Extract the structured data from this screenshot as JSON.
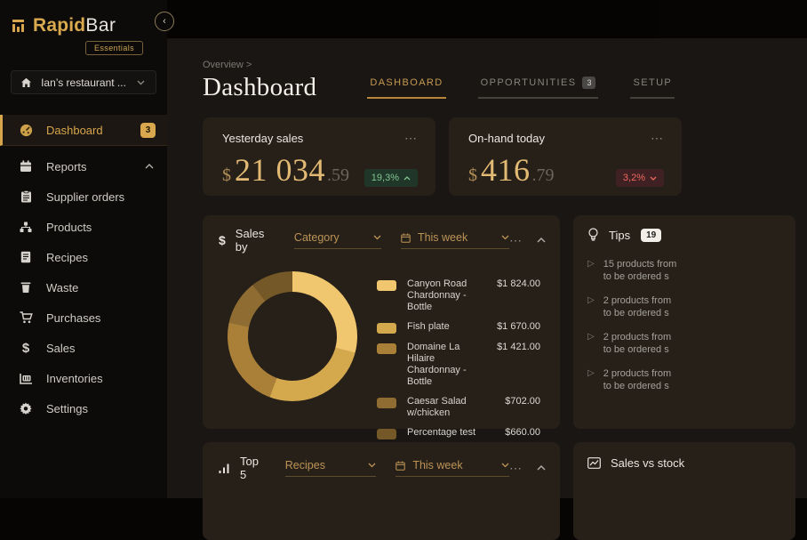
{
  "logo": {
    "brand_primary": "Rapid",
    "brand_secondary": "Bar",
    "badge": "Essentials"
  },
  "topbar": {
    "collapse_icon": "‹"
  },
  "sidebar": {
    "restaurant_selector": {
      "label": "Ian’s restaurant ..."
    },
    "items": [
      {
        "label": "Dashboard",
        "badge": "3"
      },
      {
        "label": "Reports"
      },
      {
        "label": "Supplier orders"
      },
      {
        "label": "Products"
      },
      {
        "label": "Recipes"
      },
      {
        "label": "Waste"
      },
      {
        "label": "Purchases"
      },
      {
        "label": "Sales"
      },
      {
        "label": "Inventories"
      },
      {
        "label": "Settings"
      }
    ]
  },
  "header": {
    "breadcrumb": "Overview >",
    "title": "Dashboard",
    "tabs": [
      {
        "label": "DASHBOARD"
      },
      {
        "label": "OPPORTUNITIES",
        "badge": "3"
      },
      {
        "label": "SETUP"
      }
    ]
  },
  "kpis": [
    {
      "title": "Yesterday sales",
      "currency": "$",
      "value": "21 034",
      "decimal": ".59",
      "change": "19,3%",
      "menu": "⋯"
    },
    {
      "title": "On-hand today",
      "currency": "$",
      "value": "416",
      "decimal": ".79",
      "change": "3,2%",
      "menu": "⋯"
    }
  ],
  "sales_by": {
    "icon": "$",
    "title": "Sales by",
    "dimension": "Category",
    "period": "This week",
    "menu": "⋯"
  },
  "chart_data": {
    "type": "pie",
    "donut": true,
    "title": "Sales by Category - This week",
    "labels": [
      "Canyon Road Chardonnay - Bottle",
      "Fish plate",
      "Domaine La Hilaire Chardonnay - Bottle",
      "Caesar Salad w/chicken",
      "Percentage test"
    ],
    "values": [
      1824.0,
      1670.0,
      1421.0,
      702.0,
      660.0
    ],
    "display_values": [
      "$1 824.00",
      "$1 670.00",
      "$1 421.00",
      "$702.00",
      "$660.00"
    ],
    "colors": [
      "#f0c76e",
      "#d4a94e",
      "#aa8039",
      "#8f6c31",
      "#745827"
    ],
    "legend_position": "right"
  },
  "tips": {
    "title": "Tips",
    "badge": "19",
    "items": [
      {
        "line1": "15 products from",
        "line2": "to be ordered s"
      },
      {
        "line1": "2 products from",
        "line2": "to be ordered s"
      },
      {
        "line1": "2 products from",
        "line2": "to be ordered s"
      },
      {
        "line1": "2 products from",
        "line2": "to be ordered s"
      }
    ]
  },
  "top5": {
    "title": "Top 5",
    "dimension": "Recipes",
    "period": "This week",
    "menu": "⋯"
  },
  "sales_vs_stock": {
    "title": "Sales vs stock"
  },
  "colors": {
    "accent_gold": "#d7a54c",
    "card_bg": "#262019",
    "main_bg": "#1a1613",
    "sidebar_bg": "#0d0b09",
    "positive_badge": "#80c491",
    "negative_badge": "#ee6a5f"
  }
}
